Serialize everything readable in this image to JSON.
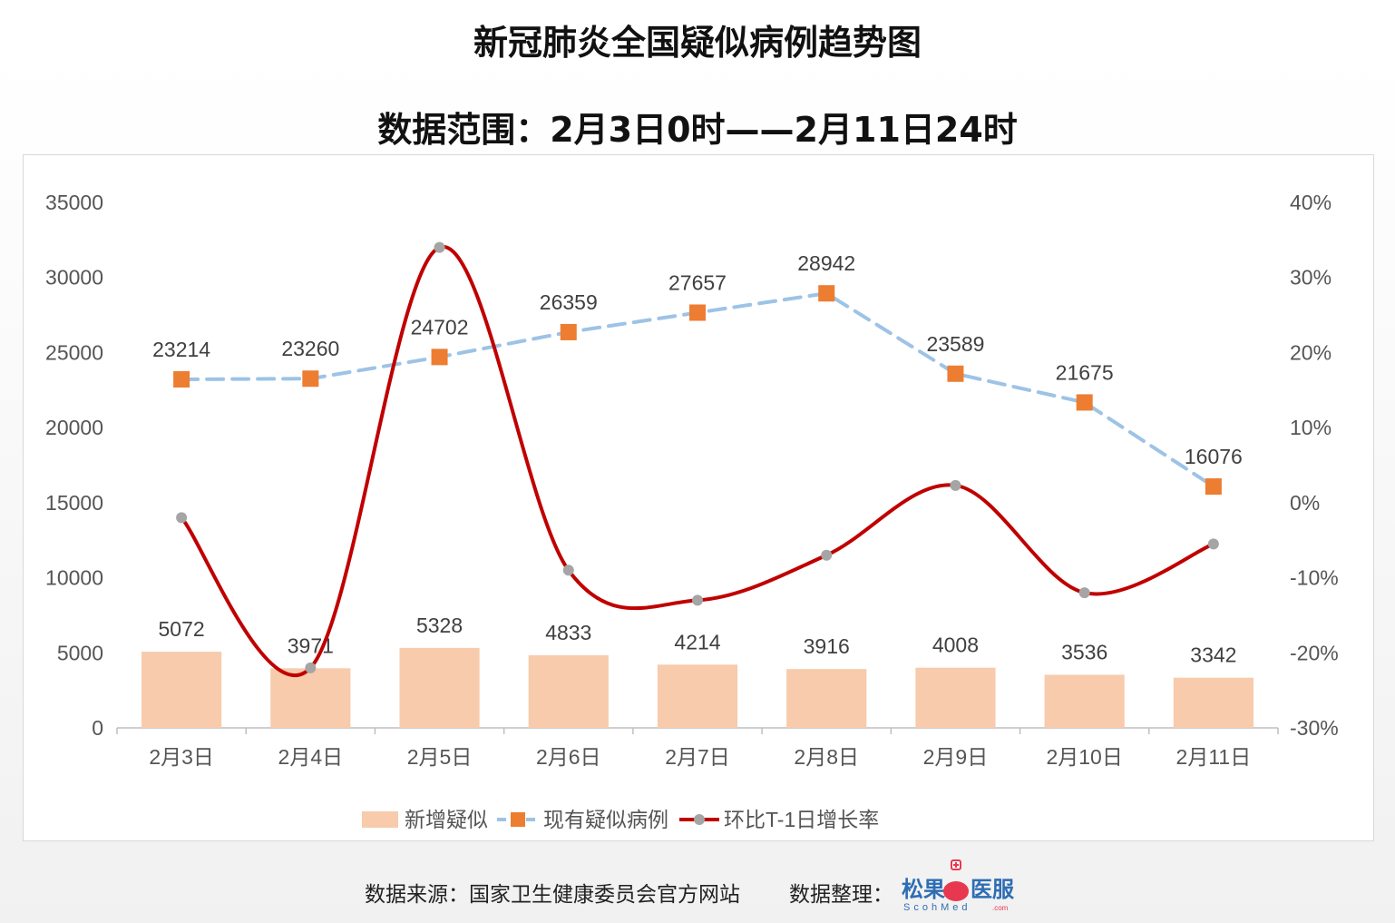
{
  "header": {
    "title": "新冠肺炎全国疑似病例趋势图",
    "subtitle": "数据范围：2月3日0时——2月11日24时"
  },
  "footer": {
    "source": "数据来源：国家卫生健康委员会官方网站",
    "organizer_label": "数据整理：",
    "logo_text": "松果",
    "logo_text2": "医服",
    "logo_sub": "ScohMed",
    "logo_com": ".com"
  },
  "colors": {
    "bar": "#f7cbab",
    "existing_line": "#9dc3e6",
    "existing_marker": "#ed7d31",
    "growth_line": "#c00000",
    "growth_marker": "#a5a5a5",
    "logo_red": "#e8384f",
    "logo_blue": "#2e6db4"
  },
  "chart_data": {
    "type": "bar",
    "categories": [
      "2月3日",
      "2月4日",
      "2月5日",
      "2月6日",
      "2月7日",
      "2月8日",
      "2月9日",
      "2月10日",
      "2月11日"
    ],
    "series": [
      {
        "name": "新增疑似",
        "type": "bar",
        "axis": "left",
        "values": [
          5072,
          3971,
          5328,
          4833,
          4214,
          3916,
          4008,
          3536,
          3342
        ]
      },
      {
        "name": "现有疑似病例",
        "type": "line",
        "style": "dashed",
        "axis": "left",
        "values": [
          23214,
          23260,
          24702,
          26359,
          27657,
          28942,
          23589,
          21675,
          16076
        ]
      },
      {
        "name": "环比T-1日增长率",
        "type": "line",
        "style": "smooth",
        "axis": "right",
        "values": [
          -2,
          -22,
          34,
          -9,
          -13,
          -7,
          2.3,
          -12,
          -5.5
        ]
      }
    ],
    "left_axis": {
      "ticks": [
        "0",
        "5000",
        "10000",
        "15000",
        "20000",
        "25000",
        "30000",
        "35000"
      ],
      "range": [
        0,
        35000
      ]
    },
    "right_axis": {
      "ticks": [
        "-30%",
        "-20%",
        "-10%",
        "0%",
        "10%",
        "20%",
        "30%",
        "40%"
      ],
      "range": [
        -30,
        40
      ]
    },
    "legend_position": "bottom",
    "grid": false
  }
}
